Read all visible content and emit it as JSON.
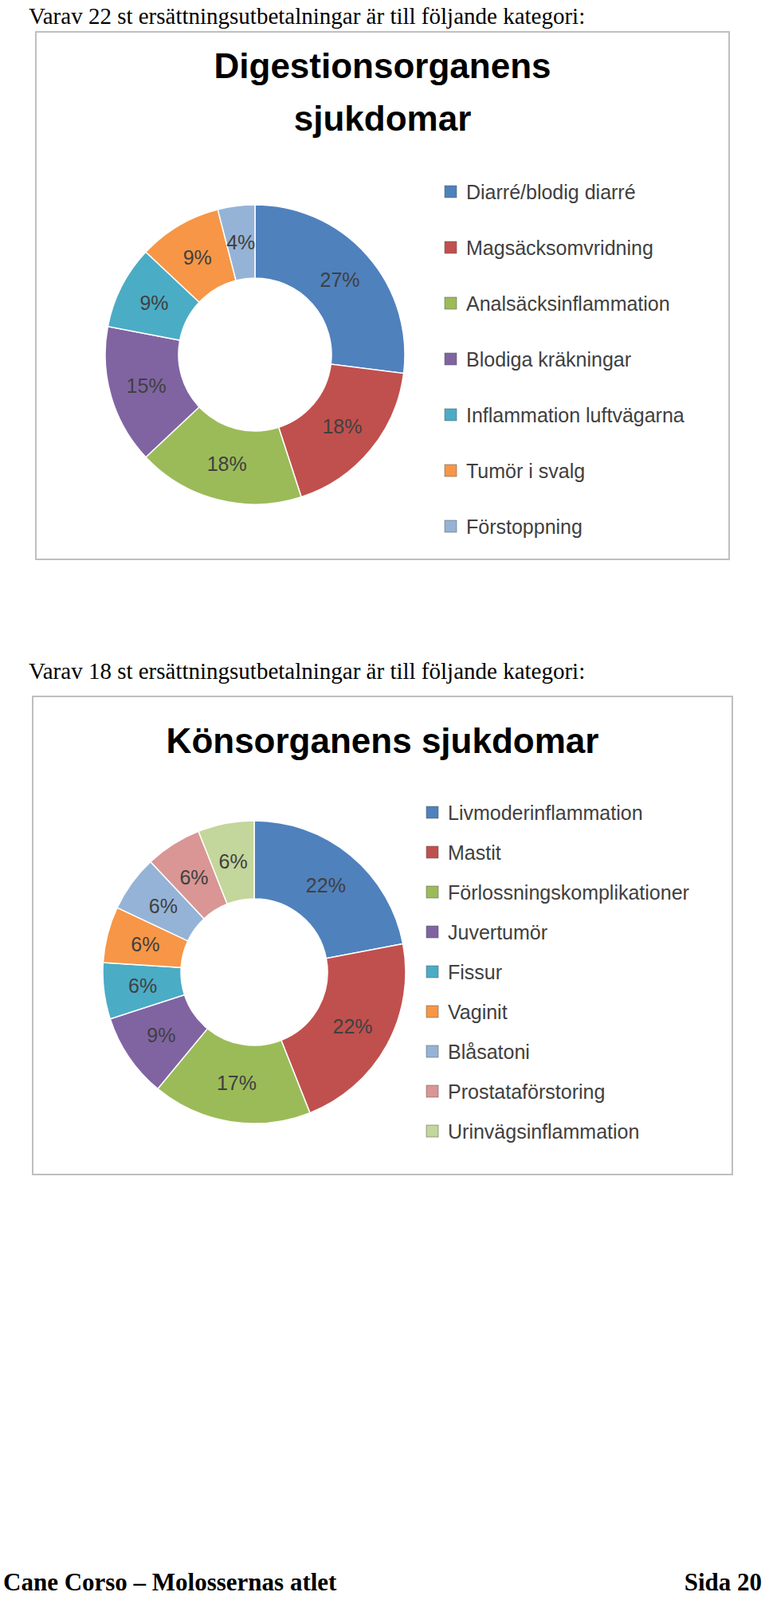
{
  "chart_data": [
    {
      "type": "pie",
      "title": "Digestionsorganens sjukdomar",
      "categories": [
        "Diarré/blodig diarré",
        "Magsäcksomvridning",
        "Analsäcksinflammation",
        "Blodiga kräkningar",
        "Inflammation luftvägarna",
        "Tumör i svalg",
        "Förstoppning"
      ],
      "values": [
        27,
        18,
        18,
        15,
        9,
        9,
        4
      ],
      "value_labels": [
        "27%",
        "18%",
        "18%",
        "15%",
        "9%",
        "9%",
        "4%"
      ],
      "colors": [
        "#4f81bd",
        "#c0504d",
        "#9bbb59",
        "#8064a2",
        "#4bacc6",
        "#f79646",
        "#95b3d7"
      ],
      "data_labels": true,
      "legend": "right"
    },
    {
      "type": "pie",
      "title": "Könsorganens sjukdomar",
      "categories": [
        "Livmoderinflammation",
        "Mastit",
        "Förlossningskomplikationer",
        "Juvertumör",
        "Fissur",
        "Vaginit",
        "Blåsatoni",
        "Prostataförstoring",
        "Urinvägsinflammation"
      ],
      "values": [
        22,
        22,
        17,
        9,
        6,
        6,
        6,
        6,
        6
      ],
      "value_labels": [
        "22%",
        "22%",
        "17%",
        "9%",
        "6%",
        "6%",
        "6%",
        "6%",
        "6%"
      ],
      "colors": [
        "#4f81bd",
        "#c0504d",
        "#9bbb59",
        "#8064a2",
        "#4bacc6",
        "#f79646",
        "#95b3d7",
        "#d99694",
        "#c3d69b"
      ],
      "data_labels": true,
      "legend": "right"
    }
  ],
  "document": {
    "captions": [
      "Varav 22 st ersättningsutbetalningar är till följande kategori:",
      "Varav 18 st ersättningsutbetalningar är till följande kategori:"
    ],
    "footer": {
      "left": "Cane Corso – Molossernas atlet",
      "right": "Sida 20"
    }
  }
}
